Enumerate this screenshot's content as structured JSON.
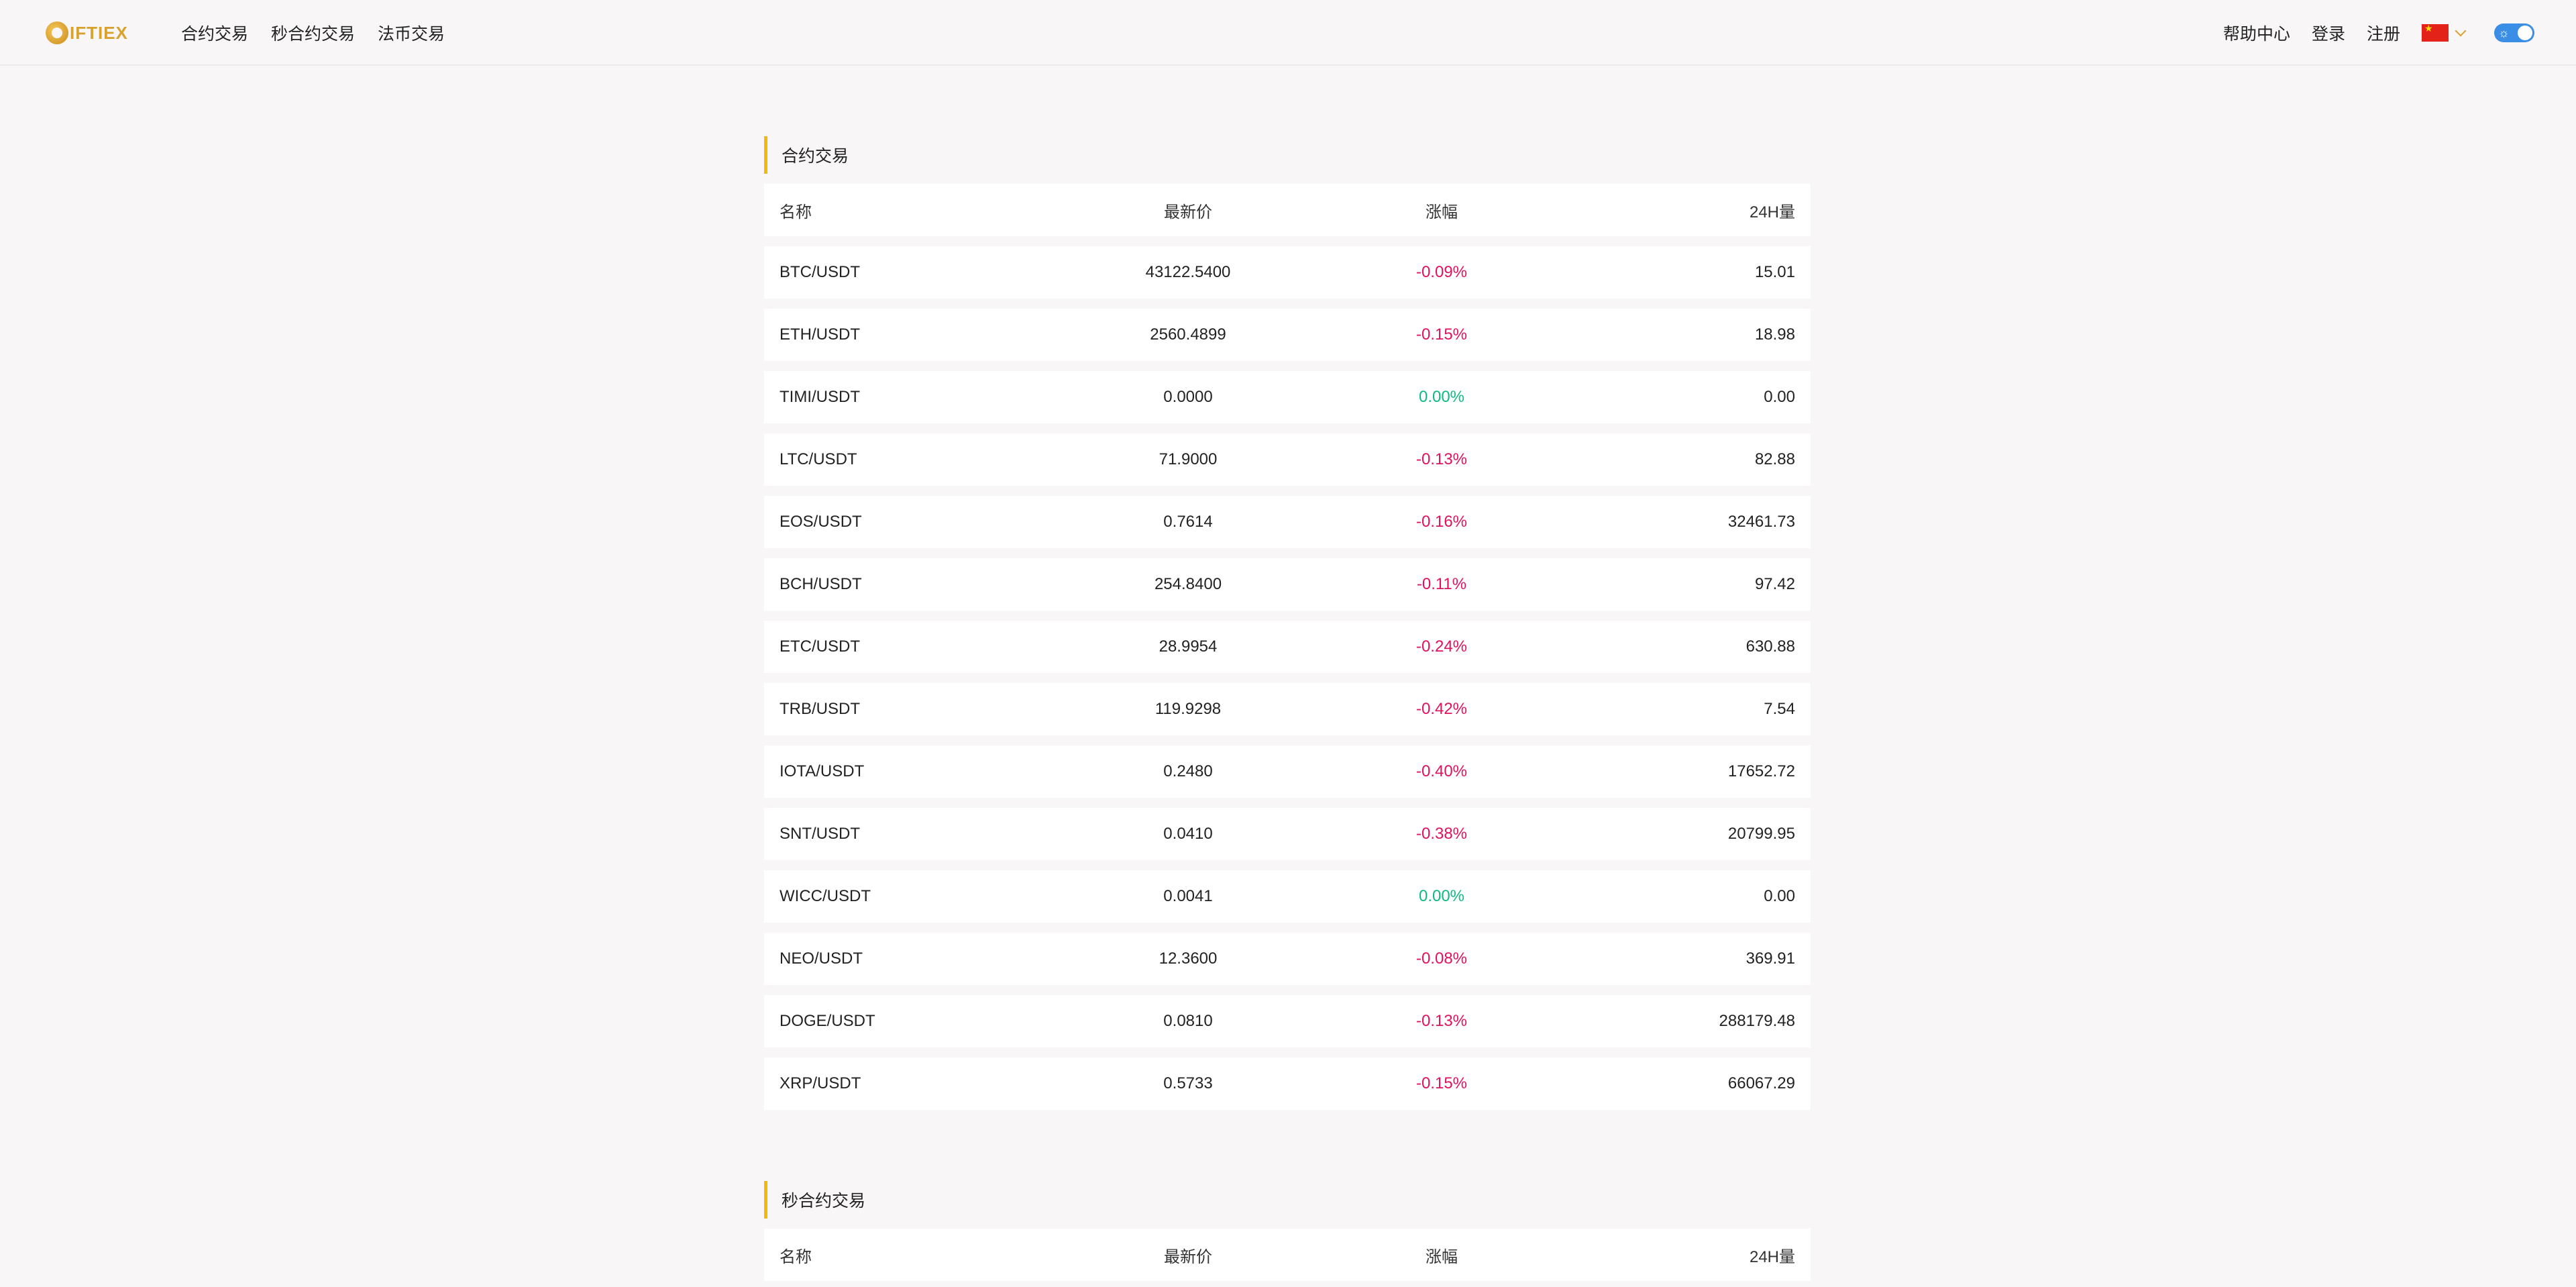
{
  "header": {
    "logo_text": "IFTIEX",
    "nav": [
      "合约交易",
      "秒合约交易",
      "法币交易"
    ],
    "right": {
      "help": "帮助中心",
      "login": "登录",
      "register": "注册"
    }
  },
  "sections": [
    {
      "title": "合约交易",
      "columns": [
        "名称",
        "最新价",
        "涨幅",
        "24H量"
      ],
      "rows": [
        {
          "name": "BTC/USDT",
          "price": "43122.5400",
          "change": "-0.09%",
          "volume": "15.01",
          "trend": "down"
        },
        {
          "name": "ETH/USDT",
          "price": "2560.4899",
          "change": "-0.15%",
          "volume": "18.98",
          "trend": "down"
        },
        {
          "name": "TIMI/USDT",
          "price": "0.0000",
          "change": "0.00%",
          "volume": "0.00",
          "trend": "flat"
        },
        {
          "name": "LTC/USDT",
          "price": "71.9000",
          "change": "-0.13%",
          "volume": "82.88",
          "trend": "down"
        },
        {
          "name": "EOS/USDT",
          "price": "0.7614",
          "change": "-0.16%",
          "volume": "32461.73",
          "trend": "down"
        },
        {
          "name": "BCH/USDT",
          "price": "254.8400",
          "change": "-0.11%",
          "volume": "97.42",
          "trend": "down"
        },
        {
          "name": "ETC/USDT",
          "price": "28.9954",
          "change": "-0.24%",
          "volume": "630.88",
          "trend": "down"
        },
        {
          "name": "TRB/USDT",
          "price": "119.9298",
          "change": "-0.42%",
          "volume": "7.54",
          "trend": "down"
        },
        {
          "name": "IOTA/USDT",
          "price": "0.2480",
          "change": "-0.40%",
          "volume": "17652.72",
          "trend": "down"
        },
        {
          "name": "SNT/USDT",
          "price": "0.0410",
          "change": "-0.38%",
          "volume": "20799.95",
          "trend": "down"
        },
        {
          "name": "WICC/USDT",
          "price": "0.0041",
          "change": "0.00%",
          "volume": "0.00",
          "trend": "flat"
        },
        {
          "name": "NEO/USDT",
          "price": "12.3600",
          "change": "-0.08%",
          "volume": "369.91",
          "trend": "down"
        },
        {
          "name": "DOGE/USDT",
          "price": "0.0810",
          "change": "-0.13%",
          "volume": "288179.48",
          "trend": "down"
        },
        {
          "name": "XRP/USDT",
          "price": "0.5733",
          "change": "-0.15%",
          "volume": "66067.29",
          "trend": "down"
        }
      ]
    },
    {
      "title": "秒合约交易",
      "columns": [
        "名称",
        "最新价",
        "涨幅",
        "24H量"
      ],
      "rows": []
    }
  ],
  "colors": {
    "accent": "#f0b90b",
    "down": "#e0115f",
    "flat": "#10b981",
    "toggle": "#3a8ee6"
  },
  "icons": {
    "flag": "china-flag-icon",
    "toggle": "theme-toggle",
    "chevron": "chevron-down-icon"
  }
}
